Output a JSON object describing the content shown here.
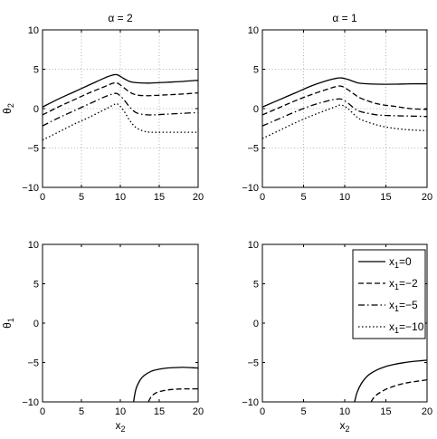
{
  "chart_data": [
    {
      "type": "line",
      "title": "α = 2",
      "xlabel": "",
      "ylabel": "θ",
      "ylabel_sub": "2",
      "xlim": [
        0,
        20
      ],
      "ylim": [
        -10,
        10
      ],
      "xticks": [
        "0",
        "5",
        "10",
        "15",
        "20"
      ],
      "yticks": [
        "10",
        "5",
        "0",
        "−5",
        "−10"
      ],
      "grid": true,
      "series": [
        {
          "style": "solid",
          "x": [
            0,
            2,
            4,
            6,
            8,
            9,
            9.6,
            10.4,
            11.2,
            12,
            13,
            14,
            16,
            18,
            20
          ],
          "y": [
            0.2,
            1.2,
            2.1,
            3.0,
            3.9,
            4.25,
            4.3,
            3.85,
            3.45,
            3.3,
            3.25,
            3.25,
            3.35,
            3.45,
            3.6
          ]
        },
        {
          "style": "dashed",
          "x": [
            0,
            2,
            4,
            6,
            8,
            9,
            9.6,
            10.4,
            11.2,
            12,
            13,
            14,
            16,
            18,
            20
          ],
          "y": [
            -0.8,
            0.2,
            1.1,
            2.0,
            2.8,
            3.2,
            3.25,
            2.7,
            2.1,
            1.75,
            1.65,
            1.65,
            1.75,
            1.85,
            2.0
          ]
        },
        {
          "style": "dashdot",
          "x": [
            0,
            2,
            4,
            6,
            8,
            9,
            9.6,
            10.4,
            11.2,
            12,
            13,
            14,
            16,
            18,
            20
          ],
          "y": [
            -2.2,
            -1.2,
            -0.3,
            0.6,
            1.5,
            1.85,
            1.9,
            1.2,
            0.2,
            -0.5,
            -0.75,
            -0.8,
            -0.7,
            -0.6,
            -0.5
          ]
        },
        {
          "style": "dotted",
          "x": [
            0,
            2,
            4,
            6,
            8,
            9,
            9.6,
            10.4,
            11.2,
            12,
            13,
            14,
            16,
            18,
            20
          ],
          "y": [
            -4.0,
            -3.0,
            -2.0,
            -1.1,
            -0.1,
            0.4,
            0.6,
            -0.2,
            -1.5,
            -2.4,
            -2.85,
            -3.0,
            -3.0,
            -3.0,
            -3.0
          ]
        }
      ]
    },
    {
      "type": "line",
      "title": "α = 1",
      "xlabel": "",
      "ylabel": "",
      "xlim": [
        0,
        20
      ],
      "ylim": [
        -10,
        10
      ],
      "xticks": [
        "0",
        "5",
        "10",
        "15",
        "20"
      ],
      "yticks": [
        "10",
        "5",
        "0",
        "−5",
        "−10"
      ],
      "grid": true,
      "series": [
        {
          "style": "solid",
          "x": [
            0,
            2,
            4,
            6,
            8,
            9,
            9.6,
            10.4,
            11.2,
            12,
            14,
            16,
            18,
            20
          ],
          "y": [
            0.2,
            1.1,
            2.0,
            2.9,
            3.6,
            3.85,
            3.9,
            3.7,
            3.4,
            3.2,
            3.1,
            3.1,
            3.15,
            3.15
          ]
        },
        {
          "style": "dashed",
          "x": [
            0,
            2,
            4,
            6,
            8,
            9,
            9.6,
            10.4,
            11.2,
            12,
            14,
            16,
            18,
            20
          ],
          "y": [
            -0.8,
            0.1,
            1.0,
            1.8,
            2.5,
            2.8,
            2.85,
            2.4,
            1.8,
            1.3,
            0.6,
            0.3,
            0.0,
            -0.1
          ]
        },
        {
          "style": "dashdot",
          "x": [
            0,
            2,
            4,
            6,
            8,
            9,
            9.6,
            10.4,
            11.2,
            12,
            14,
            16,
            18,
            20
          ],
          "y": [
            -2.2,
            -1.3,
            -0.4,
            0.4,
            1.0,
            1.2,
            1.2,
            0.7,
            0.0,
            -0.4,
            -0.8,
            -0.9,
            -0.95,
            -1.0
          ]
        },
        {
          "style": "dotted",
          "x": [
            0,
            2,
            4,
            6,
            8,
            9,
            9.6,
            10.4,
            11.2,
            12,
            14,
            16,
            18,
            20
          ],
          "y": [
            -3.8,
            -2.8,
            -1.8,
            -0.9,
            -0.1,
            0.3,
            0.45,
            0.0,
            -0.8,
            -1.4,
            -2.1,
            -2.5,
            -2.7,
            -2.8
          ]
        }
      ]
    },
    {
      "type": "line",
      "title": "",
      "xlabel": "x",
      "xlabel_sub": "2",
      "ylabel": "θ",
      "ylabel_sub": "1",
      "xlim": [
        0,
        20
      ],
      "ylim": [
        -10,
        10
      ],
      "xticks": [
        "0",
        "5",
        "10",
        "15",
        "20"
      ],
      "yticks": [
        "10",
        "5",
        "0",
        "−5",
        "−10"
      ],
      "grid": false,
      "series": [
        {
          "style": "solid",
          "x": [
            11.7,
            12,
            12.5,
            13,
            14,
            15,
            16,
            17,
            18,
            19,
            20
          ],
          "y": [
            -10,
            -8.4,
            -7.3,
            -6.7,
            -6.1,
            -5.85,
            -5.7,
            -5.65,
            -5.6,
            -5.65,
            -5.7
          ]
        },
        {
          "style": "dashed",
          "x": [
            13.6,
            14,
            14.5,
            15,
            16,
            17,
            18,
            19,
            20
          ],
          "y": [
            -10,
            -9.3,
            -8.9,
            -8.7,
            -8.5,
            -8.4,
            -8.35,
            -8.35,
            -8.35
          ]
        }
      ]
    },
    {
      "type": "line",
      "title": "",
      "xlabel": "x",
      "xlabel_sub": "2",
      "ylabel": "",
      "xlim": [
        0,
        20
      ],
      "ylim": [
        -10,
        10
      ],
      "xticks": [
        "0",
        "5",
        "10",
        "15",
        "20"
      ],
      "yticks": [
        "10",
        "5",
        "0",
        "−5",
        "−10"
      ],
      "grid": false,
      "legend_position": "top-right",
      "legend": [
        {
          "base": "x",
          "sub": "1",
          "rest": "=0",
          "style": "solid"
        },
        {
          "base": "x",
          "sub": "1",
          "rest": "=−2",
          "style": "dashed"
        },
        {
          "base": "x",
          "sub": "1",
          "rest": "=−5",
          "style": "dashdot"
        },
        {
          "base": "x",
          "sub": "1",
          "rest": "=−10",
          "style": "dotted"
        }
      ],
      "series": [
        {
          "style": "solid",
          "x": [
            11.2,
            11.5,
            12,
            12.5,
            13,
            14,
            15,
            16,
            17,
            18,
            19,
            20
          ],
          "y": [
            -10,
            -8.8,
            -7.7,
            -7.0,
            -6.5,
            -5.9,
            -5.5,
            -5.25,
            -5.05,
            -4.9,
            -4.8,
            -4.7
          ]
        },
        {
          "style": "dashed",
          "x": [
            13.2,
            13.5,
            14,
            14.5,
            15,
            16,
            17,
            18,
            19,
            20
          ],
          "y": [
            -10,
            -9.5,
            -9.0,
            -8.7,
            -8.4,
            -8.0,
            -7.7,
            -7.5,
            -7.35,
            -7.2
          ]
        }
      ]
    }
  ]
}
